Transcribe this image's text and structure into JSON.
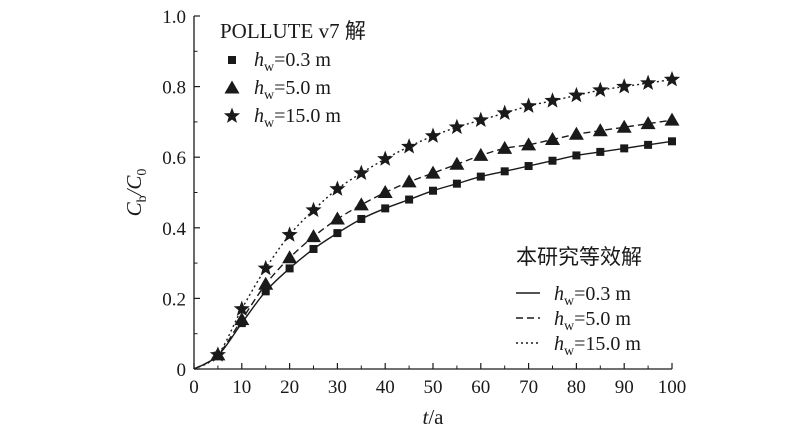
{
  "chart_data": {
    "type": "line",
    "xlabel_italic": "t",
    "xlabel_unit": "/a",
    "ylabel_parts": [
      "C",
      "b",
      "/C",
      "0"
    ],
    "xlim": [
      0,
      100
    ],
    "ylim": [
      0,
      1.0
    ],
    "xticks": [
      "0",
      "10",
      "20",
      "30",
      "40",
      "50",
      "60",
      "70",
      "80",
      "90",
      "100"
    ],
    "yticks": [
      "0",
      "0.2",
      "0.4",
      "0.6",
      "0.8",
      "1.0"
    ],
    "grid": false,
    "legend_markers": {
      "title": "POLLUTE v7 解",
      "placement": "top-left",
      "entries": [
        {
          "var": "h",
          "sub": "w",
          "text": "=0.3 m",
          "marker": "square"
        },
        {
          "var": "h",
          "sub": "w",
          "text": "=5.0 m",
          "marker": "triangle"
        },
        {
          "var": "h",
          "sub": "w",
          "text": "=15.0 m",
          "marker": "star"
        }
      ]
    },
    "legend_lines": {
      "title": "本研究等效解",
      "placement": "bottom-right",
      "entries": [
        {
          "var": "h",
          "sub": "w",
          "text": "=0.3 m",
          "dash": "solid"
        },
        {
          "var": "h",
          "sub": "w",
          "text": "=5.0 m",
          "dash": "dashed"
        },
        {
          "var": "h",
          "sub": "w",
          "text": "=15.0 m",
          "dash": "dotted"
        }
      ]
    },
    "series": [
      {
        "id": "hw-0.3",
        "marker": "square",
        "dash": "solid",
        "x": [
          0,
          5,
          10,
          15,
          20,
          25,
          30,
          35,
          40,
          45,
          50,
          55,
          60,
          65,
          70,
          75,
          80,
          85,
          90,
          95,
          100
        ],
        "y": [
          0,
          0.038,
          0.13,
          0.22,
          0.285,
          0.34,
          0.385,
          0.425,
          0.455,
          0.48,
          0.505,
          0.525,
          0.545,
          0.56,
          0.575,
          0.59,
          0.605,
          0.615,
          0.625,
          0.635,
          0.645
        ]
      },
      {
        "id": "hw-5.0",
        "marker": "triangle",
        "dash": "dashed",
        "x": [
          0,
          5,
          10,
          15,
          20,
          25,
          30,
          35,
          40,
          45,
          50,
          55,
          60,
          65,
          70,
          75,
          80,
          85,
          90,
          95,
          100
        ],
        "y": [
          0,
          0.04,
          0.14,
          0.24,
          0.315,
          0.375,
          0.425,
          0.465,
          0.5,
          0.53,
          0.555,
          0.58,
          0.605,
          0.625,
          0.635,
          0.65,
          0.665,
          0.675,
          0.685,
          0.695,
          0.705
        ]
      },
      {
        "id": "hw-15.0",
        "marker": "star",
        "dash": "dotted",
        "x": [
          0,
          5,
          10,
          15,
          20,
          25,
          30,
          35,
          40,
          45,
          50,
          55,
          60,
          65,
          70,
          75,
          80,
          85,
          90,
          95,
          100
        ],
        "y": [
          0,
          0.04,
          0.17,
          0.285,
          0.38,
          0.45,
          0.51,
          0.555,
          0.595,
          0.63,
          0.66,
          0.685,
          0.705,
          0.725,
          0.745,
          0.76,
          0.775,
          0.79,
          0.8,
          0.81,
          0.82
        ]
      }
    ]
  }
}
